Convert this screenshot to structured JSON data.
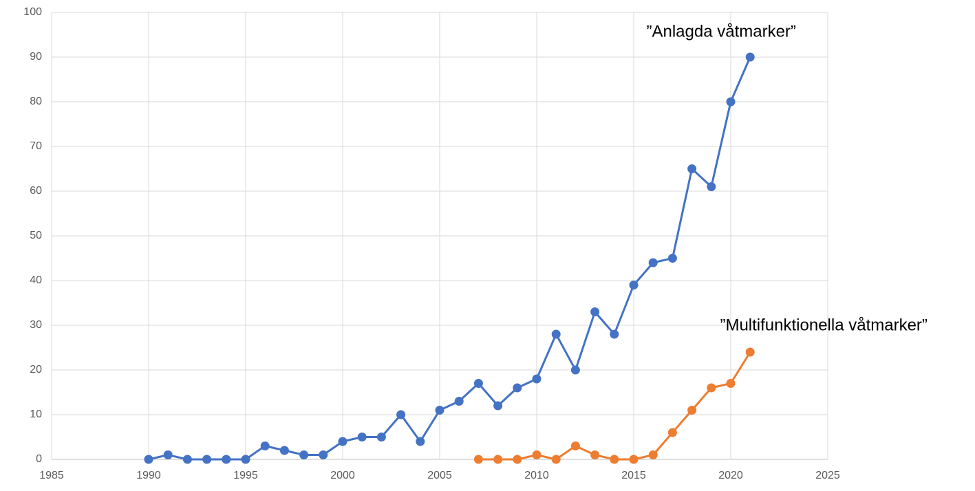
{
  "chart_data": {
    "type": "line",
    "series": [
      {
        "name": "”Anlagda våtmarker”",
        "color": "#4472c4",
        "x": [
          1990,
          1991,
          1992,
          1993,
          1994,
          1995,
          1996,
          1997,
          1998,
          1999,
          2000,
          2001,
          2002,
          2003,
          2004,
          2005,
          2006,
          2007,
          2008,
          2009,
          2010,
          2011,
          2012,
          2013,
          2014,
          2015,
          2016,
          2017,
          2018,
          2019,
          2020,
          2021
        ],
        "values": [
          0,
          1,
          0,
          0,
          0,
          0,
          3,
          2,
          1,
          1,
          4,
          5,
          5,
          10,
          4,
          11,
          13,
          17,
          12,
          16,
          18,
          28,
          20,
          33,
          28,
          39,
          44,
          45,
          65,
          61,
          80,
          90
        ]
      },
      {
        "name": "”Multifunktionella våtmarker”",
        "color": "#ed7d31",
        "x": [
          2007,
          2008,
          2009,
          2010,
          2011,
          2012,
          2013,
          2014,
          2015,
          2016,
          2017,
          2018,
          2019,
          2020,
          2021
        ],
        "values": [
          0,
          0,
          0,
          1,
          0,
          3,
          1,
          0,
          0,
          1,
          6,
          11,
          16,
          17,
          24
        ]
      }
    ],
    "xlim": [
      1985,
      2025
    ],
    "xticks": [
      1985,
      1990,
      1995,
      2000,
      2005,
      2010,
      2015,
      2020,
      2025
    ],
    "ylim": [
      0,
      100
    ],
    "yticks": [
      0,
      10,
      20,
      30,
      40,
      50,
      60,
      70,
      80,
      90,
      100
    ],
    "grid": true
  }
}
